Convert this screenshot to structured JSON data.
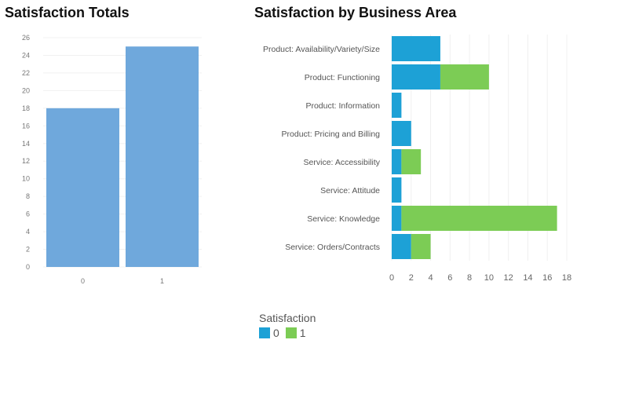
{
  "chart_data": [
    {
      "type": "bar",
      "title": "Satisfaction Totals",
      "categories": [
        "0",
        "1"
      ],
      "values": [
        18,
        25
      ],
      "ylim": [
        0,
        26
      ],
      "yticks": [
        0,
        2,
        4,
        6,
        8,
        10,
        12,
        14,
        16,
        18,
        20,
        22,
        24,
        26
      ],
      "grid": true,
      "color": "#6fa8dc"
    },
    {
      "type": "bar",
      "orientation": "horizontal",
      "stacked": true,
      "title": "Satisfaction by Business Area",
      "categories": [
        "Product: Availability/Variety/Size",
        "Product: Functioning",
        "Product: Information",
        "Product: Pricing and Billing",
        "Service: Accessibility",
        "Service: Attitude",
        "Service: Knowledge",
        "Service: Orders/Contracts"
      ],
      "series": [
        {
          "name": "0",
          "color": "#1da1d6",
          "values": [
            5,
            5,
            1,
            2,
            1,
            1,
            1,
            2
          ]
        },
        {
          "name": "1",
          "color": "#7ccc55",
          "values": [
            0,
            5,
            0,
            0,
            2,
            0,
            16,
            2
          ]
        }
      ],
      "xlim": [
        0,
        18
      ],
      "xticks": [
        0,
        2,
        4,
        6,
        8,
        10,
        12,
        14,
        16,
        18
      ],
      "grid": true,
      "legend": {
        "title": "Satisfaction",
        "placement": "bottom-left"
      }
    }
  ]
}
